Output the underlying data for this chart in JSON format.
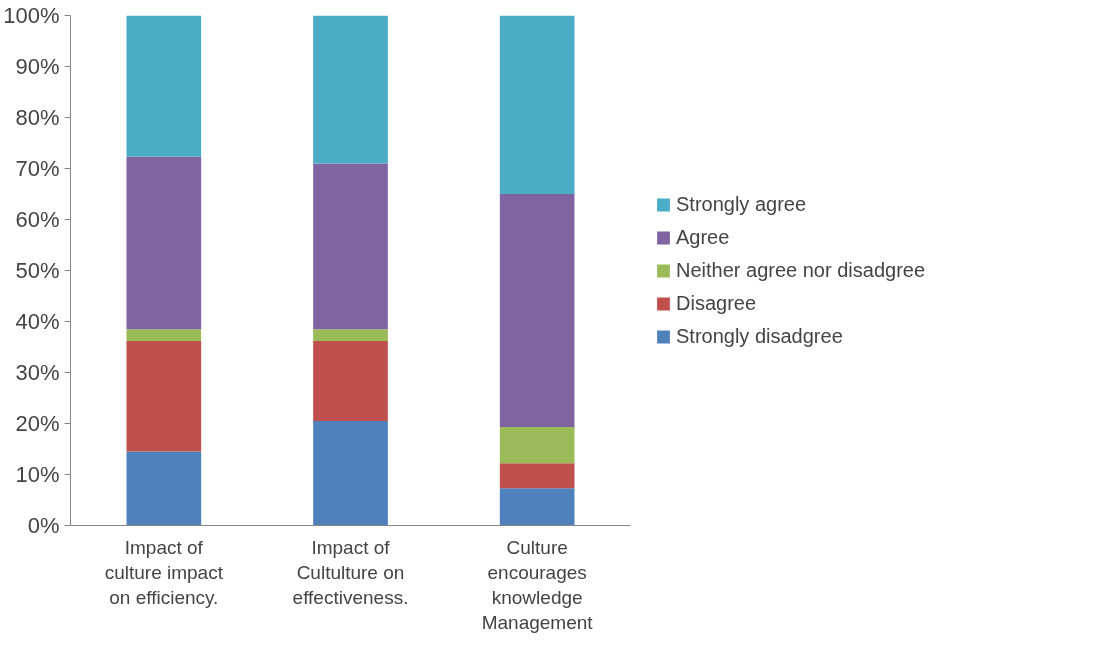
{
  "chart_data": {
    "type": "bar",
    "stacked": true,
    "categories": [
      "Impact of\nculture impact\non efficiency.",
      "Impact of\nCultulture on\neffectiveness.",
      "Culture\nencourages\nknowledge\nManagement"
    ],
    "series": [
      {
        "name": "Strongly disadgree",
        "color": "#4f81bd",
        "values": [
          14.5,
          20.5,
          7.3
        ]
      },
      {
        "name": "Disagree",
        "color": "#c0504d",
        "values": [
          21.7,
          15.7,
          4.9
        ]
      },
      {
        "name": "Neither agree nor disadgree",
        "color": "#9bbb59",
        "values": [
          2.3,
          2.3,
          7.1
        ]
      },
      {
        "name": "Agree",
        "color": "#8064a2",
        "values": [
          33.8,
          32.5,
          45.7
        ]
      },
      {
        "name": "Strongly agree",
        "color": "#4bacc6",
        "values": [
          27.7,
          29.0,
          35.0
        ]
      }
    ],
    "ylim": [
      0,
      100
    ],
    "yticks": [
      {
        "value": 0,
        "label": "0%"
      },
      {
        "value": 10,
        "label": "10%"
      },
      {
        "value": 20,
        "label": "20%"
      },
      {
        "value": 30,
        "label": "30%"
      },
      {
        "value": 40,
        "label": "40%"
      },
      {
        "value": 50,
        "label": "50%"
      },
      {
        "value": 60,
        "label": "60%"
      },
      {
        "value": 70,
        "label": "70%"
      },
      {
        "value": 80,
        "label": "80%"
      },
      {
        "value": 90,
        "label": "90%"
      },
      {
        "value": 100,
        "label": "100%"
      }
    ],
    "grid": false,
    "legend": "right"
  }
}
